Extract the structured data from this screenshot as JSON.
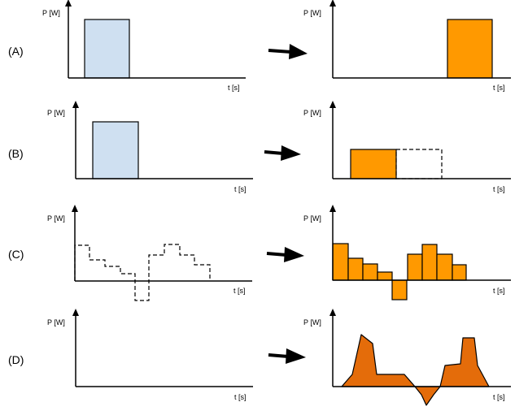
{
  "axis_text": {
    "y_label": "P [W]",
    "x_label": "t [s]"
  },
  "rows": [
    {
      "label": "(A)"
    },
    {
      "label": "(B)"
    },
    {
      "label": "(C)"
    },
    {
      "label": "(D)"
    }
  ],
  "colors": {
    "input_fill": "#cfe0f1",
    "output_fill": "#ff9900",
    "output_fill_dark": "#e46c0a",
    "stroke": "#000000"
  }
}
